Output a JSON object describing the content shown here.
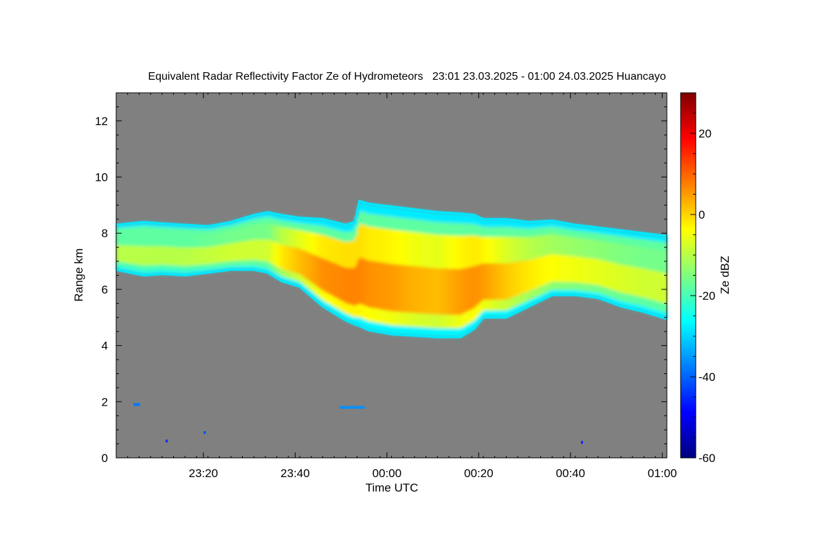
{
  "chart_data": {
    "type": "heatmap",
    "title": "Equivalent Radar Reflectivity Factor Ze of Hydrometeors   23:01 23.03.2025 - 01:00 24.03.2025 Huancayo",
    "xlabel": "Time UTC",
    "ylabel": "Range km",
    "x_ticks": [
      "23:20",
      "23:40",
      "00:00",
      "00:20",
      "00:40",
      "01:00"
    ],
    "x_tick_minutes": [
      19,
      39,
      59,
      79,
      99,
      119
    ],
    "xlim_minutes": [
      0,
      120
    ],
    "y_ticks": [
      0,
      2,
      4,
      6,
      8,
      10,
      12
    ],
    "ylim": [
      0,
      13
    ],
    "background_color": "#808080",
    "colorbar": {
      "label": "Ze dBZ",
      "range": [
        -60,
        30
      ],
      "ticks": [
        -60,
        -40,
        -20,
        0,
        20
      ],
      "colors": [
        "#00007f",
        "#0000ff",
        "#007fff",
        "#00ffff",
        "#7fff7f",
        "#ffff00",
        "#ff7f00",
        "#ff0000",
        "#7f0000"
      ]
    },
    "cloud_layer": {
      "minutes": [
        0,
        3,
        6,
        10,
        15,
        20,
        25,
        30,
        33,
        36,
        40,
        45,
        50,
        52,
        53,
        55,
        60,
        65,
        70,
        75,
        78,
        80,
        85,
        90,
        95,
        100,
        105,
        110,
        115,
        120
      ],
      "top_km": [
        8.3,
        8.35,
        8.4,
        8.35,
        8.3,
        8.25,
        8.4,
        8.65,
        8.75,
        8.65,
        8.55,
        8.5,
        8.3,
        8.4,
        9.15,
        9.05,
        8.95,
        8.85,
        8.75,
        8.7,
        8.65,
        8.5,
        8.5,
        8.4,
        8.45,
        8.3,
        8.2,
        8.1,
        8.0,
        7.9
      ],
      "base_km": [
        6.7,
        6.6,
        6.5,
        6.55,
        6.5,
        6.6,
        6.7,
        6.7,
        6.6,
        6.3,
        6.1,
        5.4,
        4.9,
        4.75,
        4.7,
        4.55,
        4.4,
        4.35,
        4.3,
        4.3,
        4.6,
        5.0,
        5.0,
        5.4,
        5.8,
        5.8,
        5.7,
        5.4,
        5.2,
        4.95
      ],
      "max_ze_dbz": [
        -10,
        -10,
        -10,
        -10,
        -10,
        -9,
        -8,
        -8,
        -8,
        -2,
        2,
        6,
        7,
        7,
        7,
        6,
        5,
        3,
        2,
        5,
        6,
        5,
        1,
        -2,
        -4,
        -5,
        -6,
        -7,
        -8,
        -8
      ]
    },
    "small_echoes": [
      {
        "minute": 4.5,
        "range_km": 1.9,
        "ze_dbz": -38
      },
      {
        "minute": 19.3,
        "range_km": 0.9,
        "ze_dbz": -42
      },
      {
        "minute": 49.5,
        "range_km": 1.8,
        "ze_dbz": -36
      },
      {
        "minute": 11,
        "range_km": 0.6,
        "ze_dbz": -45
      },
      {
        "minute": 101.5,
        "range_km": 0.55,
        "ze_dbz": -45
      }
    ]
  }
}
